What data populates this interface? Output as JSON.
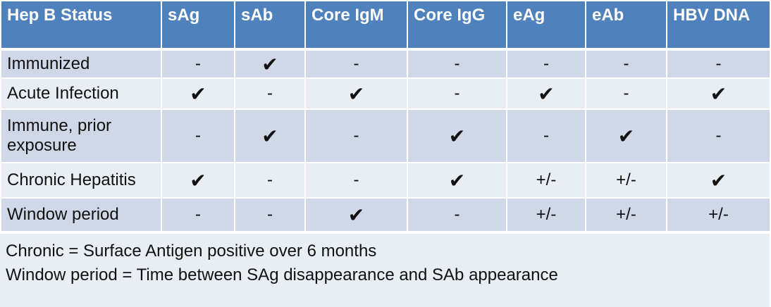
{
  "table": {
    "header": [
      "Hep B Status",
      "sAg",
      "sAb",
      "Core IgM",
      "Core IgG",
      "eAg",
      "eAb",
      "HBV DNA"
    ],
    "rows": [
      [
        "Immunized",
        "-",
        "✔",
        "-",
        "-",
        "-",
        "-",
        "-"
      ],
      [
        "Acute Infection",
        "✔",
        "-",
        "✔",
        "-",
        "✔",
        "-",
        "✔"
      ],
      [
        "Immune, prior exposure",
        "-",
        "✔",
        "-",
        "✔",
        "-",
        "✔",
        "-"
      ],
      [
        "Chronic Hepatitis",
        "✔",
        "-",
        "-",
        "✔",
        "+/-",
        "+/-",
        "✔"
      ],
      [
        "Window period",
        "-",
        "-",
        "✔",
        "-",
        "+/-",
        "+/-",
        "+/-"
      ]
    ],
    "footer": [
      "Chronic = Surface Antigen positive over 6 months",
      "Window period = Time between SAg disappearance and SAb appearance"
    ]
  }
}
